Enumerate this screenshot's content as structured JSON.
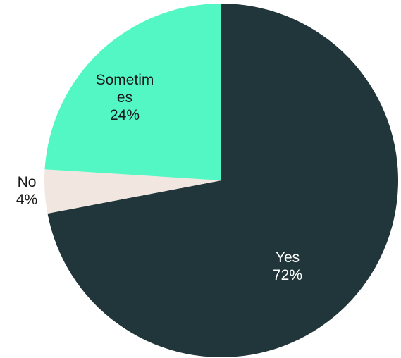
{
  "chart_data": {
    "type": "pie",
    "title": "",
    "start_angle_deg": 0,
    "direction": "clockwise",
    "slices": [
      {
        "label_lines": [
          "Yes",
          "72%"
        ],
        "value": 72,
        "color": "#21363a",
        "text_color": "#ffffff"
      },
      {
        "label_lines": [
          "No",
          "4%"
        ],
        "value": 4,
        "color": "#f1e6e0",
        "text_color": "#1a1a1a"
      },
      {
        "label_lines": [
          "Sometim",
          "es",
          "24%"
        ],
        "value": 24,
        "color": "#52f7c3",
        "text_color": "#1a1a1a"
      }
    ]
  }
}
